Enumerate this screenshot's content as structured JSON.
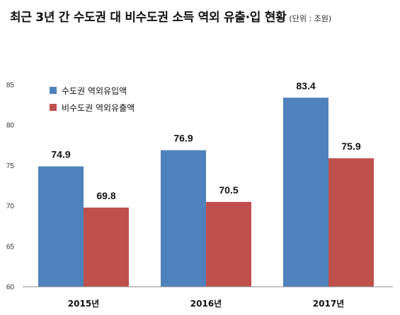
{
  "title": {
    "main": "최근 3년 간 수도권 대 비수도권 소득 역외 유출·입 현황",
    "unit": "(단위 : 조원)"
  },
  "chart_data": {
    "type": "bar",
    "categories": [
      "2015년",
      "2016년",
      "2017년"
    ],
    "series": [
      {
        "name": "수도권 역외유입액",
        "values": [
          74.9,
          76.9,
          83.4
        ],
        "color": "#4F81BD"
      },
      {
        "name": "비수도권 역외유출액",
        "values": [
          69.8,
          70.5,
          75.9
        ],
        "color": "#C0504D"
      }
    ],
    "ylim": [
      60,
      85
    ],
    "yticks": [
      60,
      65,
      70,
      75,
      80,
      85
    ],
    "grid": false,
    "legend": "top-left",
    "data_labels": true
  }
}
